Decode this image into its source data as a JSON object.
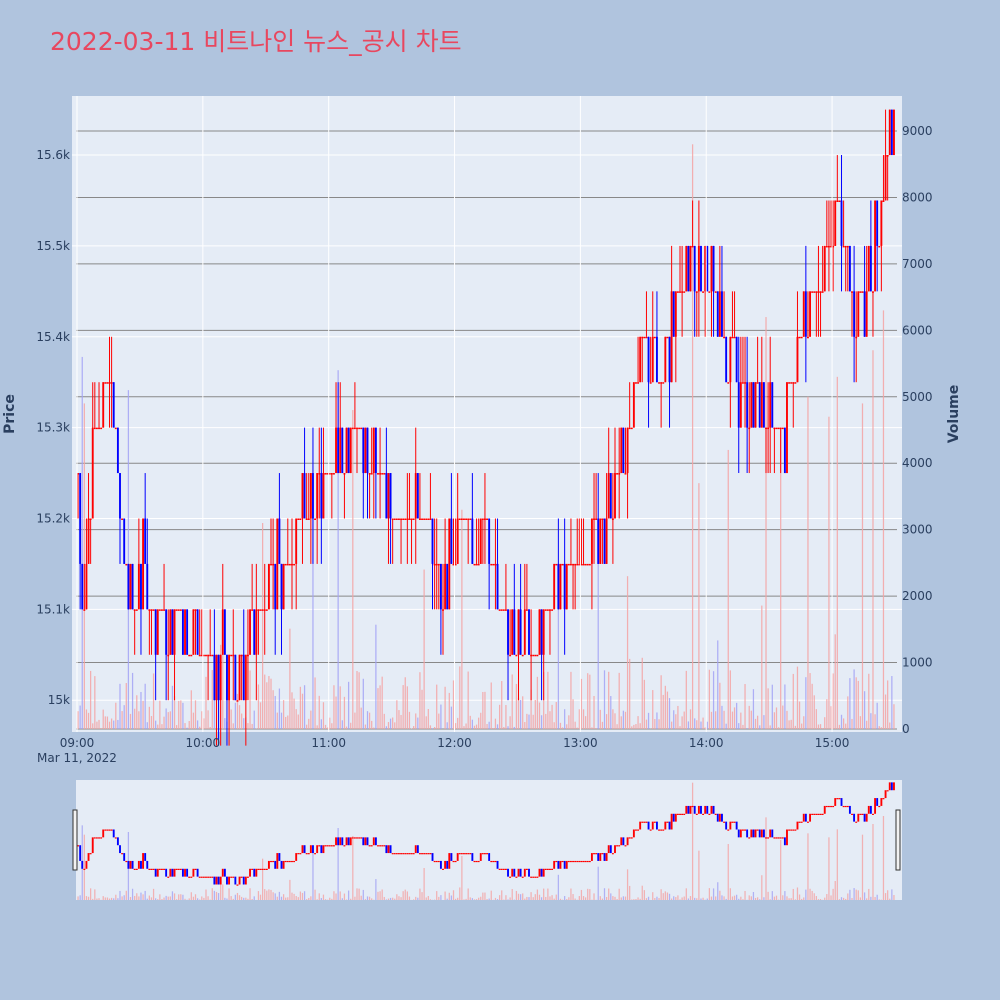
{
  "title": "2022-03-11 비트나인 뉴스_공시 차트",
  "colors": {
    "title": "#e8475f",
    "background": "#b0c4de",
    "plot_bg": "#e5ecf6",
    "up": "#ff0000",
    "down": "#0000ff",
    "volume_up": "#f4a3a3",
    "volume_down": "#a3a3f4",
    "grid": "#ffffff",
    "volume_grid": "#888888"
  },
  "chart_data": {
    "type": "candlestick",
    "xaxis": {
      "tick_labels": [
        "09:00",
        "10:00",
        "11:00",
        "12:00",
        "13:00",
        "14:00",
        "15:00"
      ],
      "sub_label": "Mar 11, 2022",
      "range_minutes": [
        0,
        390
      ]
    },
    "yaxis_price": {
      "title": "Price",
      "range": [
        14965,
        15665
      ],
      "ticks": [
        15000,
        15100,
        15200,
        15300,
        15400,
        15500,
        15600
      ],
      "tick_labels": [
        "15k",
        "15.1k",
        "15.2k",
        "15.3k",
        "15.4k",
        "15.5k",
        "15.6k"
      ]
    },
    "yaxis_volume": {
      "title": "Volume",
      "range": [
        0,
        9000
      ],
      "ticks": [
        0,
        1000,
        2000,
        3000,
        4000,
        5000,
        6000,
        7000,
        8000,
        9000
      ],
      "tick_labels": [
        "0",
        "1000",
        "2000",
        "3000",
        "4000",
        "5000",
        "6000",
        "7000",
        "8000",
        "9000"
      ]
    },
    "price_keypoints": [
      [
        0,
        15250
      ],
      [
        3,
        15100
      ],
      [
        6,
        15200
      ],
      [
        9,
        15300
      ],
      [
        12,
        15350
      ],
      [
        16,
        15350
      ],
      [
        18,
        15300
      ],
      [
        20,
        15250
      ],
      [
        24,
        15150
      ],
      [
        28,
        15100
      ],
      [
        32,
        15150
      ],
      [
        38,
        15100
      ],
      [
        45,
        15080
      ],
      [
        52,
        15070
      ],
      [
        58,
        15060
      ],
      [
        64,
        15050
      ],
      [
        70,
        15050
      ],
      [
        76,
        15040
      ],
      [
        80,
        15020
      ],
      [
        85,
        15080
      ],
      [
        90,
        15120
      ],
      [
        95,
        15150
      ],
      [
        100,
        15150
      ],
      [
        108,
        15200
      ],
      [
        115,
        15250
      ],
      [
        122,
        15260
      ],
      [
        128,
        15280
      ],
      [
        134,
        15300
      ],
      [
        140,
        15270
      ],
      [
        148,
        15220
      ],
      [
        155,
        15200
      ],
      [
        165,
        15200
      ],
      [
        175,
        15150
      ],
      [
        185,
        15180
      ],
      [
        195,
        15190
      ],
      [
        200,
        15150
      ],
      [
        205,
        15100
      ],
      [
        210,
        15060
      ],
      [
        215,
        15050
      ],
      [
        220,
        15060
      ],
      [
        225,
        15100
      ],
      [
        230,
        15150
      ],
      [
        240,
        15150
      ],
      [
        245,
        15170
      ],
      [
        250,
        15190
      ],
      [
        255,
        15200
      ],
      [
        258,
        15250
      ],
      [
        263,
        15300
      ],
      [
        268,
        15350
      ],
      [
        272,
        15400
      ],
      [
        278,
        15350
      ],
      [
        285,
        15400
      ],
      [
        290,
        15450
      ],
      [
        295,
        15500
      ],
      [
        300,
        15480
      ],
      [
        305,
        15450
      ],
      [
        310,
        15380
      ],
      [
        315,
        15350
      ],
      [
        320,
        15340
      ],
      [
        325,
        15330
      ],
      [
        330,
        15320
      ],
      [
        335,
        15310
      ],
      [
        338,
        15300
      ],
      [
        340,
        15330
      ],
      [
        345,
        15400
      ],
      [
        350,
        15420
      ],
      [
        355,
        15450
      ],
      [
        358,
        15480
      ],
      [
        360,
        15500
      ],
      [
        363,
        15530
      ],
      [
        366,
        15520
      ],
      [
        370,
        15470
      ],
      [
        373,
        15420
      ],
      [
        376,
        15430
      ],
      [
        380,
        15480
      ],
      [
        383,
        15550
      ],
      [
        386,
        15600
      ],
      [
        390,
        15620
      ]
    ],
    "volume_peaks": [
      [
        2,
        5600
      ],
      [
        3,
        4900
      ],
      [
        24,
        5100
      ],
      [
        88,
        3100
      ],
      [
        112,
        3600
      ],
      [
        124,
        5400
      ],
      [
        131,
        4800
      ],
      [
        165,
        2400
      ],
      [
        183,
        3300
      ],
      [
        248,
        2500
      ],
      [
        262,
        2300
      ],
      [
        293,
        8800
      ],
      [
        296,
        3700
      ],
      [
        310,
        4200
      ],
      [
        328,
        6200
      ],
      [
        335,
        4500
      ],
      [
        348,
        5000
      ],
      [
        358,
        4700
      ],
      [
        362,
        5300
      ],
      [
        374,
        4900
      ],
      [
        379,
        5700
      ],
      [
        384,
        6300
      ]
    ],
    "candle_count": 390,
    "seed": 17
  },
  "rangeslider": {
    "show": true
  }
}
